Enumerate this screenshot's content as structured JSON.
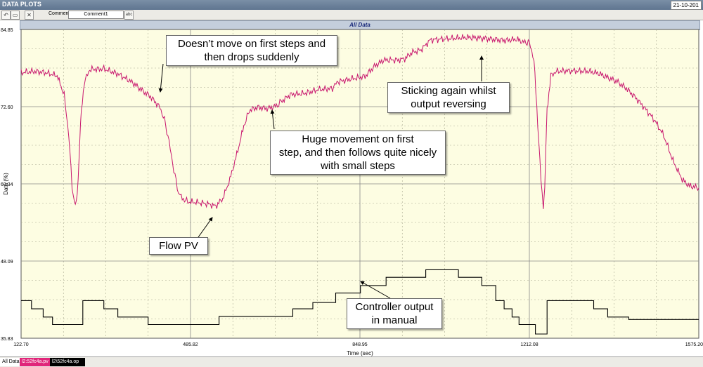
{
  "window": {
    "title": "DATA PLOTS",
    "date": "21-10-201"
  },
  "toolbar": {
    "buttons": [
      {
        "name": "undo-button",
        "icon": "undo-icon",
        "glyph": "↶"
      },
      {
        "name": "open-button",
        "icon": "folder-icon",
        "glyph": "▭"
      },
      {
        "name": "delete-button",
        "icon": "close-icon",
        "glyph": "✕"
      }
    ],
    "comment_label": "Comment",
    "comment_value": "Comment1",
    "apply_icon": "abc"
  },
  "header": {
    "title": "All Data"
  },
  "legend": {
    "all_label": "All Data",
    "series": [
      {
        "label": "l2:52fc4a.pv",
        "bg": "#e0257a",
        "fg": "#ffffff"
      },
      {
        "label": "l2\\52fc4a.op",
        "bg": "#000000",
        "fg": "#ffffff"
      }
    ]
  },
  "annotations": {
    "a1": "Doesn’t move on first steps and\nthen drops suddenly",
    "a2": "Huge movement on first\nstep, and then follows quite nicely\nwith small steps",
    "a3": "Sticking again whilst\noutput reversing",
    "a4": "Flow PV",
    "a5": "Controller output\nin manual"
  },
  "chart_data": {
    "type": "line",
    "title": "All Data",
    "xlabel": "Time (sec)",
    "ylabel": "Data (%)",
    "xlim": [
      122.7,
      1575.2
    ],
    "ylim": [
      35.83,
      84.85
    ],
    "x_ticks": [
      "122.70",
      "485.82",
      "848.95",
      "1212.08",
      "1575.20"
    ],
    "y_ticks": [
      "84.85",
      "72.60",
      "60.34",
      "48.09",
      "35.83"
    ],
    "grid": true,
    "colors": {
      "pv": "#c8176e",
      "op": "#000000",
      "plot_bg": "#fdfde2",
      "grid": "#b8b8a0"
    },
    "series": [
      {
        "name": "l2:52fc4a.pv",
        "points": [
          [
            122.7,
            78.0
          ],
          [
            150,
            78.2
          ],
          [
            175,
            78.0
          ],
          [
            200,
            77.5
          ],
          [
            215,
            74.5
          ],
          [
            225,
            68
          ],
          [
            232,
            60
          ],
          [
            237,
            57.3
          ],
          [
            241,
            57.1
          ],
          [
            245,
            61
          ],
          [
            250,
            70
          ],
          [
            258,
            76.5
          ],
          [
            270,
            78.5
          ],
          [
            300,
            78.6
          ],
          [
            330,
            77.8
          ],
          [
            360,
            76.5
          ],
          [
            380,
            75.3
          ],
          [
            400,
            74.2
          ],
          [
            420,
            72.5
          ],
          [
            430,
            70.5
          ],
          [
            440,
            67
          ],
          [
            450,
            62.5
          ],
          [
            460,
            59
          ],
          [
            468,
            58
          ],
          [
            480,
            57.5
          ],
          [
            500,
            57.4
          ],
          [
            520,
            57.2
          ],
          [
            540,
            56.8
          ],
          [
            555,
            58
          ],
          [
            570,
            61
          ],
          [
            585,
            65
          ],
          [
            600,
            69.5
          ],
          [
            612,
            72
          ],
          [
            630,
            72.5
          ],
          [
            650,
            72.3
          ],
          [
            670,
            72.7
          ],
          [
            680,
            73.4
          ],
          [
            700,
            74.5
          ],
          [
            730,
            74.7
          ],
          [
            760,
            75.3
          ],
          [
            790,
            75.5
          ],
          [
            800,
            76.5
          ],
          [
            830,
            77
          ],
          [
            860,
            77.4
          ],
          [
            880,
            79
          ],
          [
            900,
            80
          ],
          [
            930,
            80
          ],
          [
            945,
            80.2
          ],
          [
            960,
            81.2
          ],
          [
            980,
            81.6
          ],
          [
            1000,
            83.2
          ],
          [
            1040,
            83.4
          ],
          [
            1080,
            83.6
          ],
          [
            1120,
            83.4
          ],
          [
            1160,
            83.1
          ],
          [
            1185,
            83.3
          ],
          [
            1200,
            82.8
          ],
          [
            1212,
            82.8
          ],
          [
            1222,
            80
          ],
          [
            1230,
            70
          ],
          [
            1237,
            61
          ],
          [
            1242,
            56.5
          ],
          [
            1245,
            60
          ],
          [
            1250,
            72
          ],
          [
            1258,
            77.5
          ],
          [
            1270,
            78.2
          ],
          [
            1300,
            78.3
          ],
          [
            1340,
            78.2
          ],
          [
            1360,
            77.9
          ],
          [
            1380,
            77.2
          ],
          [
            1400,
            76.6
          ],
          [
            1420,
            75.5
          ],
          [
            1440,
            74
          ],
          [
            1460,
            72.3
          ],
          [
            1480,
            70.5
          ],
          [
            1500,
            68
          ],
          [
            1520,
            64
          ],
          [
            1540,
            61
          ],
          [
            1555,
            60
          ],
          [
            1575.2,
            59.7
          ]
        ]
      },
      {
        "name": "l2\\52fc4a.op",
        "steps": [
          [
            122.7,
            41.8
          ],
          [
            145,
            41.8
          ],
          [
            145,
            40.5
          ],
          [
            170,
            40.5
          ],
          [
            170,
            39.2
          ],
          [
            190,
            39.2
          ],
          [
            190,
            38.0
          ],
          [
            255,
            38.0
          ],
          [
            255,
            41.8
          ],
          [
            300,
            41.8
          ],
          [
            300,
            40.5
          ],
          [
            330,
            40.5
          ],
          [
            330,
            39.2
          ],
          [
            395,
            39.2
          ],
          [
            395,
            38.0
          ],
          [
            485,
            38.0
          ],
          [
            485,
            38.0
          ],
          [
            547,
            38.0
          ],
          [
            547,
            39.3
          ],
          [
            705,
            39.3
          ],
          [
            705,
            40.5
          ],
          [
            748,
            40.5
          ],
          [
            748,
            41.5
          ],
          [
            797,
            41.5
          ],
          [
            797,
            43.0
          ],
          [
            850,
            43.0
          ],
          [
            850,
            44.2
          ],
          [
            905,
            44.2
          ],
          [
            905,
            45.5
          ],
          [
            990,
            45.5
          ],
          [
            990,
            46.7
          ],
          [
            1060,
            46.7
          ],
          [
            1060,
            45.5
          ],
          [
            1110,
            45.5
          ],
          [
            1110,
            44.2
          ],
          [
            1140,
            44.2
          ],
          [
            1140,
            41.8
          ],
          [
            1158,
            41.8
          ],
          [
            1158,
            40.5
          ],
          [
            1175,
            40.5
          ],
          [
            1175,
            39.2
          ],
          [
            1190,
            39.2
          ],
          [
            1190,
            38.0
          ],
          [
            1225,
            38.0
          ],
          [
            1225,
            36.5
          ],
          [
            1250,
            36.5
          ],
          [
            1250,
            41.8
          ],
          [
            1350,
            41.8
          ],
          [
            1350,
            40.5
          ],
          [
            1380,
            40.5
          ],
          [
            1380,
            39.2
          ],
          [
            1425,
            39.2
          ],
          [
            1425,
            38.8
          ],
          [
            1575.2,
            38.8
          ]
        ]
      }
    ]
  }
}
